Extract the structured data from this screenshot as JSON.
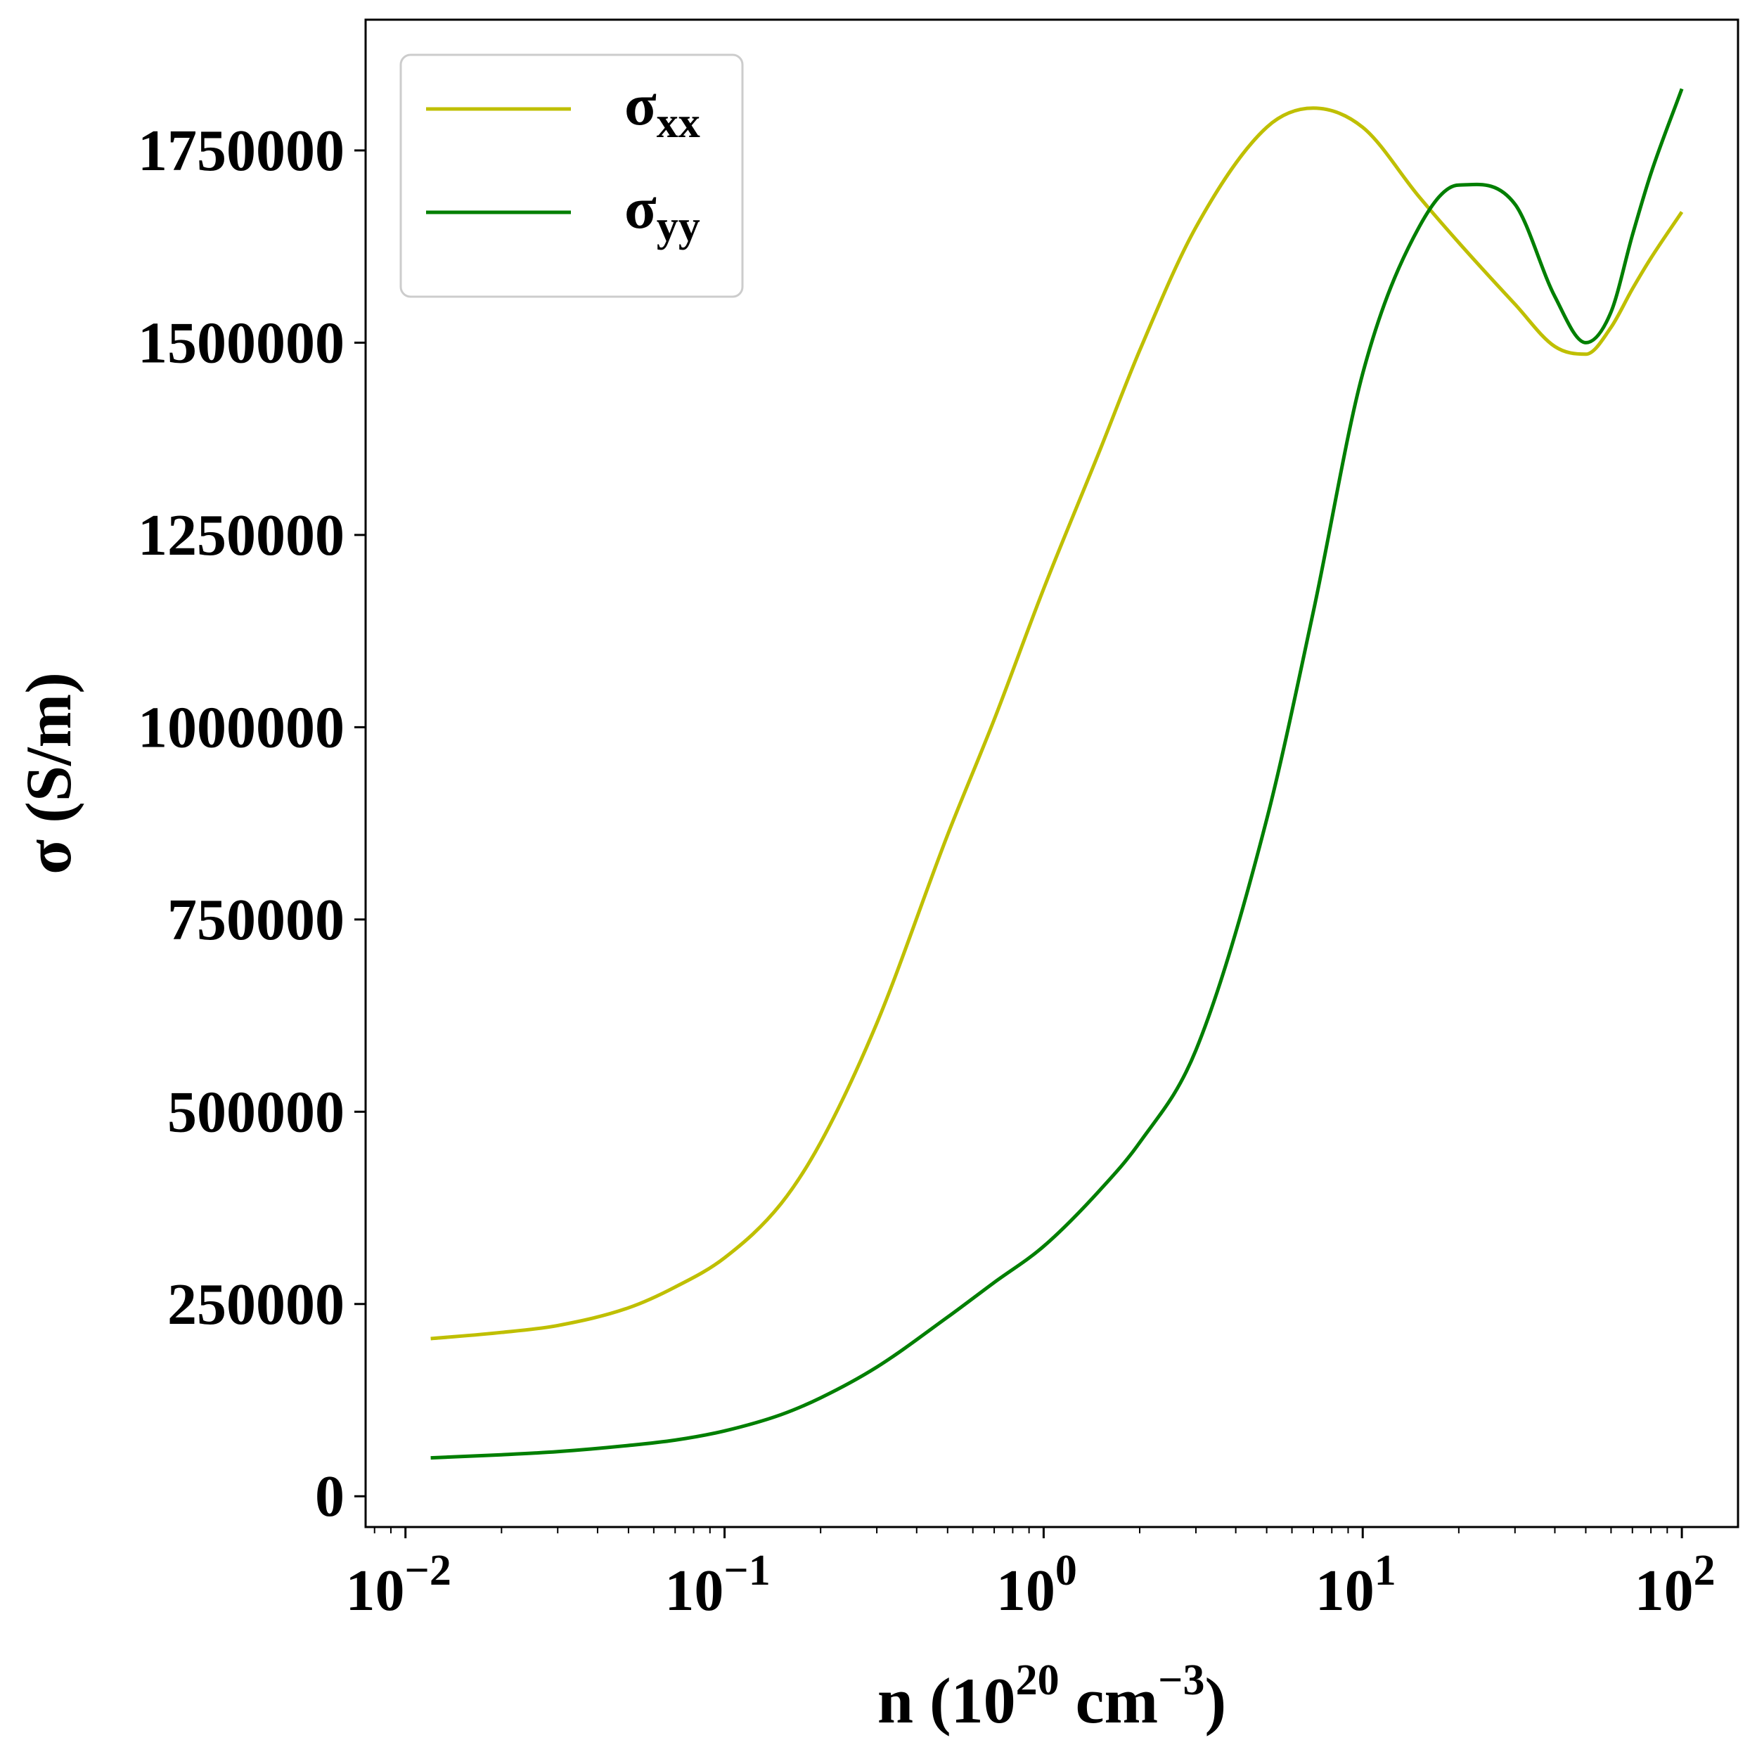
{
  "colors": {
    "sigma_xx": "#bfbf00",
    "sigma_yy": "#007f00",
    "axes": "#000000",
    "legend_border": "#cccccc"
  },
  "chart_data": {
    "type": "line",
    "xscale": "log",
    "xlabel": {
      "base": "n (10",
      "sup1": "20",
      "mid": " cm",
      "sup2": "−3",
      "end": ")"
    },
    "ylabel": "σ (S/m)",
    "xlim": [
      0.0075,
      150
    ],
    "ylim": [
      -40000,
      1920000
    ],
    "grid": false,
    "legend_position": "top-left",
    "x_ticks": [
      {
        "value": 0.01,
        "base": "10",
        "exp": "−2"
      },
      {
        "value": 0.1,
        "base": "10",
        "exp": "−1"
      },
      {
        "value": 1,
        "base": "10",
        "exp": "0"
      },
      {
        "value": 10,
        "base": "10",
        "exp": "1"
      },
      {
        "value": 100,
        "base": "10",
        "exp": "2"
      }
    ],
    "y_ticks": [
      {
        "value": 0,
        "label": "0"
      },
      {
        "value": 250000,
        "label": "250000"
      },
      {
        "value": 500000,
        "label": "500000"
      },
      {
        "value": 750000,
        "label": "750000"
      },
      {
        "value": 1000000,
        "label": "1000000"
      },
      {
        "value": 1250000,
        "label": "1250000"
      },
      {
        "value": 1500000,
        "label": "1500000"
      },
      {
        "value": 1750000,
        "label": "1750000"
      }
    ],
    "series": [
      {
        "name": "σ",
        "subscript": "xx",
        "x": [
          0.012,
          0.02,
          0.03,
          0.05,
          0.07,
          0.1,
          0.15,
          0.2,
          0.3,
          0.5,
          0.7,
          1,
          1.5,
          2,
          3,
          5,
          7,
          10,
          15,
          20,
          30,
          40,
          50,
          60,
          70,
          80,
          100
        ],
        "y": [
          205000,
          213000,
          222000,
          245000,
          272000,
          310000,
          380000,
          460000,
          615000,
          860000,
          1010000,
          1180000,
          1360000,
          1490000,
          1650000,
          1780000,
          1805000,
          1780000,
          1690000,
          1630000,
          1550000,
          1495000,
          1485000,
          1520000,
          1570000,
          1610000,
          1670000
        ]
      },
      {
        "name": "σ",
        "subscript": "yy",
        "x": [
          0.012,
          0.02,
          0.03,
          0.05,
          0.07,
          0.1,
          0.15,
          0.2,
          0.3,
          0.5,
          0.7,
          1,
          1.5,
          2,
          3,
          5,
          7,
          10,
          15,
          20,
          30,
          40,
          50,
          60,
          70,
          80,
          100
        ],
        "y": [
          50000,
          54000,
          58000,
          66000,
          73000,
          85000,
          106000,
          128000,
          168000,
          233000,
          278000,
          325000,
          398000,
          460000,
          580000,
          880000,
          1150000,
          1460000,
          1650000,
          1705000,
          1680000,
          1560000,
          1500000,
          1540000,
          1640000,
          1720000,
          1830000
        ]
      }
    ]
  }
}
